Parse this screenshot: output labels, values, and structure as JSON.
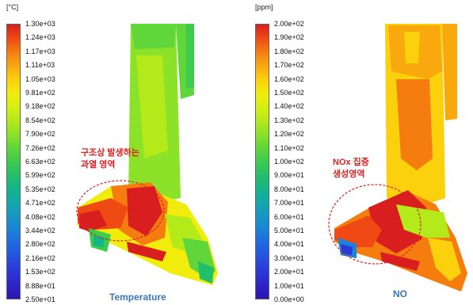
{
  "panels": [
    {
      "unit": "[°C]",
      "ticks": [
        "1.30e+03",
        "1.24e+03",
        "1.17e+03",
        "1.11e+03",
        "1.05e+03",
        "9.81e+02",
        "9.18e+02",
        "8.54e+02",
        "7.90e+02",
        "7.26e+02",
        "6.63e+02",
        "5.99e+02",
        "5.35e+02",
        "4.71e+02",
        "4.08e+02",
        "3.44e+02",
        "2.80e+02",
        "2.16e+02",
        "1.53e+02",
        "8.88e+01",
        "2.50e+01"
      ],
      "annotation": [
        "구조상 발생하는",
        "과열 영역"
      ],
      "caption": "Temperature"
    },
    {
      "unit": "[ppm]",
      "ticks": [
        "2.00e+02",
        "1.90e+02",
        "1.80e+02",
        "1.70e+02",
        "1.60e+02",
        "1.50e+02",
        "1.40e+02",
        "1.30e+02",
        "1.20e+02",
        "1.10e+02",
        "1.00e+02",
        "9.00e+01",
        "8.00e+01",
        "7.00e+01",
        "6.00e+01",
        "5.00e+01",
        "4.00e+01",
        "3.00e+01",
        "2.00e+01",
        "1.00e+01",
        "0.00e+00"
      ],
      "annotation": [
        "NOx 집중",
        "생성영역"
      ],
      "caption": "NO"
    }
  ],
  "colors": {
    "scale": [
      "#d81e1e",
      "#f04a14",
      "#f57d10",
      "#f9a80e",
      "#fbd00c",
      "#f2ec0c",
      "#d6ef10",
      "#b4ea1a",
      "#8be228",
      "#5fd63a",
      "#3dcb4e",
      "#22bf6a",
      "#14b48b",
      "#12a8ab",
      "#1697c6",
      "#1a82d8",
      "#1f68e0",
      "#2550e0",
      "#2a38d8",
      "#2e24c8",
      "#2a16b2"
    ],
    "annotation": "#e02020",
    "caption": "#3b77b8"
  }
}
